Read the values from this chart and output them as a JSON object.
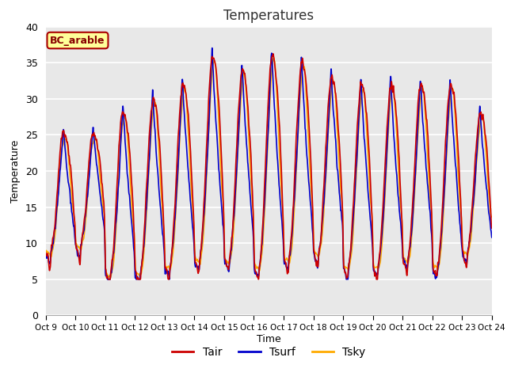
{
  "title": "Temperatures",
  "xlabel": "Time",
  "ylabel": "Temperature",
  "ylim": [
    0,
    40
  ],
  "bg_color": "#e8e8e8",
  "fig_color": "#ffffff",
  "grid_color": "#ffffff",
  "line_colors": {
    "Tair": "#cc0000",
    "Tsurf": "#0000cc",
    "Tsky": "#ffaa00"
  },
  "line_width": 1.2,
  "annotation_text": "BC_arable",
  "annotation_bg": "#ffff99",
  "annotation_edge": "#aa0000",
  "annotation_text_color": "#880000",
  "start_day": 9,
  "end_day": 24,
  "yticks": [
    0,
    5,
    10,
    15,
    20,
    25,
    30,
    35,
    40
  ],
  "daily_peaks": [
    25,
    25,
    28,
    30,
    32,
    36,
    34,
    36,
    35,
    33,
    32,
    32,
    32,
    32,
    28,
    28
  ],
  "daily_mins": [
    9,
    10,
    6,
    6,
    7,
    8,
    8,
    7,
    8,
    9,
    7,
    7,
    8,
    7,
    9,
    8
  ]
}
